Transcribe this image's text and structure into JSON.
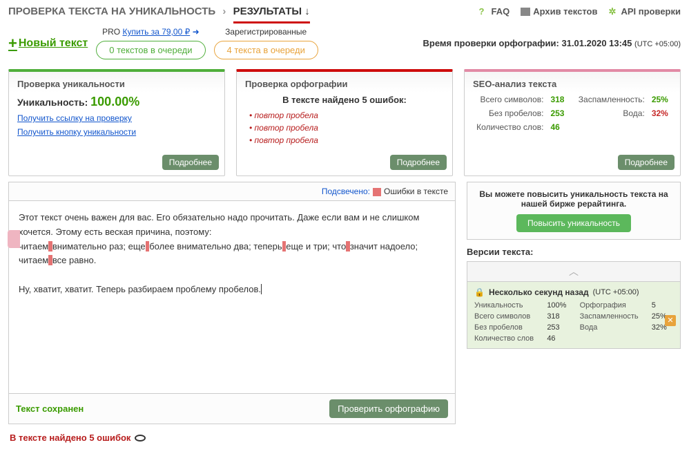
{
  "breadcrumb": {
    "part1": "ПРОВЕРКА ТЕКСТА НА УНИКАЛЬНОСТЬ",
    "part2": "РЕЗУЛЬТАТЫ ↓"
  },
  "topLinks": {
    "faq": "FAQ",
    "archive": "Архив текстов",
    "api": "API проверки"
  },
  "newText": "Новый текст",
  "pro": {
    "prefix": "PRO",
    "link": "Купить за 79,00 ₽",
    "arrow": "➜"
  },
  "queues": {
    "greenLabel": "0 текстов в очереди",
    "registered": "Зарегистрированные",
    "orangeLabel": "4 текста в очереди"
  },
  "checkTime": {
    "label": "Время проверки орфографии:",
    "value": "31.01.2020 13:45",
    "utc": "(UTC +05:00)"
  },
  "card1": {
    "title": "Проверка уникальности",
    "uniqLabel": "Уникальность:",
    "uniqVal": "100.00%",
    "link1": "Получить ссылку на проверку",
    "link2": "Получить кнопку уникальности",
    "more": "Подробнее"
  },
  "card2": {
    "title": "Проверка орфографии",
    "sub": "В тексте найдено 5 ошибок:",
    "errs": [
      "повтор пробела",
      "повтор пробела",
      "повтор пробела"
    ],
    "more": "Подробнее"
  },
  "card3": {
    "title": "SEO-анализ текста",
    "rows": [
      {
        "l": "Всего символов:",
        "v": "318",
        "l2": "Заспамленность:",
        "v2": "25%",
        "v2c": "gv"
      },
      {
        "l": "Без пробелов:",
        "v": "253",
        "l2": "Вода:",
        "v2": "32%",
        "v2c": "rv"
      },
      {
        "l": "Количество слов:",
        "v": "46",
        "l2": "",
        "v2": "",
        "v2c": ""
      }
    ],
    "more": "Подробнее"
  },
  "highlight": {
    "label": "Подсвечено:",
    "legend": "Ошибки в тексте"
  },
  "editor": {
    "p1a": "Этот текст очень важен для вас. Его обязательно надо прочитать. Даже если вам и не слишком хочется. Этому есть веская причина, поэтому:",
    "p2": {
      "a": "читаем",
      "h1": "  ",
      "b": "внимательно раз; еще",
      "h2": "  ",
      "c": "более внимательно два; теперь",
      "h3": "  ",
      "d": "еще и три; что",
      "h4": "  ",
      "e": "значит надоело; читаем",
      "h5": "  ",
      "f": "все равно."
    },
    "p3": "Ну, хватит, хватит. Теперь разбираем проблему пробелов."
  },
  "saved": "Текст сохранен",
  "checkBtn": "Проверить орфографию",
  "bottomErr": "В тексте найдено 5 ошибок",
  "rightBox": {
    "text": "Вы можете повысить уникальность текста на нашей бирже рерайтинга.",
    "btn": "Повысить уникальность"
  },
  "versionsTitle": "Версии текста:",
  "version": {
    "time": "Несколько секунд назад",
    "utc": "(UTC +05:00)",
    "rows": [
      {
        "l": "Уникальность",
        "v": "100%",
        "vc": "gv",
        "l2": "Орфография",
        "v2": "5",
        "v2c": "rv"
      },
      {
        "l": "Всего символов",
        "v": "318",
        "vc": "gv",
        "l2": "Заспамленность",
        "v2": "25%",
        "v2c": "rv"
      },
      {
        "l": "Без пробелов",
        "v": "253",
        "vc": "gv",
        "l2": "Вода",
        "v2": "32%",
        "v2c": "rv"
      },
      {
        "l": "Количество слов",
        "v": "46",
        "vc": "gv",
        "l2": "",
        "v2": "",
        "v2c": ""
      }
    ]
  }
}
